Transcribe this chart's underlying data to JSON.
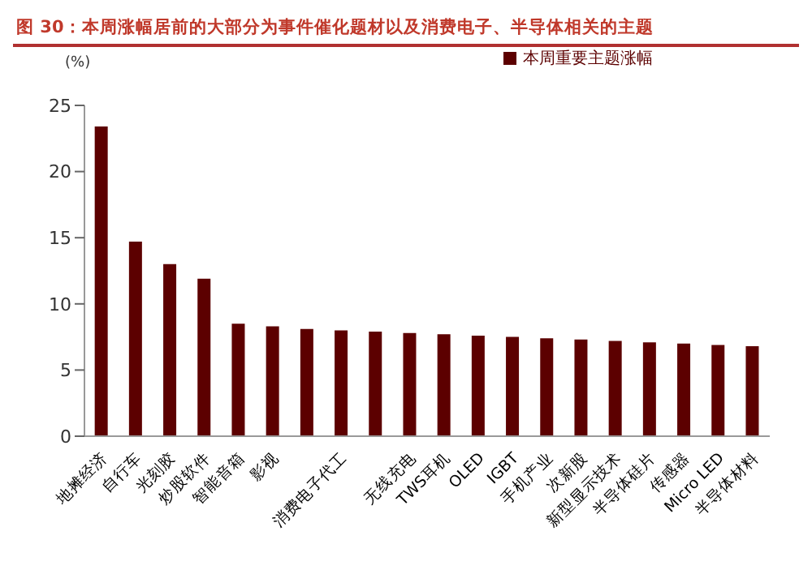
{
  "chart_data": {
    "type": "bar",
    "title": "图 30：本周涨幅居前的大部分为事件催化题材以及消费电子、半导体相关的主题",
    "ylabel": "(%)",
    "categories": [
      "地摊经济",
      "自行车",
      "光刻胶",
      "炒股软件",
      "智能音箱",
      "影视",
      null,
      "消费电子代工",
      null,
      "无线充电",
      "TWS耳机",
      "OLED",
      "IGBT",
      "手机产业",
      "次新股",
      "新型显示技术",
      "半导体硅片",
      "传感器",
      "Micro LED",
      "半导体材料"
    ],
    "series": [
      {
        "name": "本周重要主题涨幅",
        "color": "#5c0000",
        "values": [
          23.4,
          14.7,
          13,
          11.9,
          8.5,
          8.3,
          8.1,
          8,
          7.9,
          7.8,
          7.7,
          7.6,
          7.5,
          7.4,
          7.3,
          7.2,
          7.1,
          7,
          6.9,
          6.8
        ]
      }
    ],
    "ylim": [
      0,
      25
    ],
    "yticks": [
      0,
      5,
      10,
      15,
      20,
      25
    ],
    "grid": false,
    "legend": "top right"
  }
}
